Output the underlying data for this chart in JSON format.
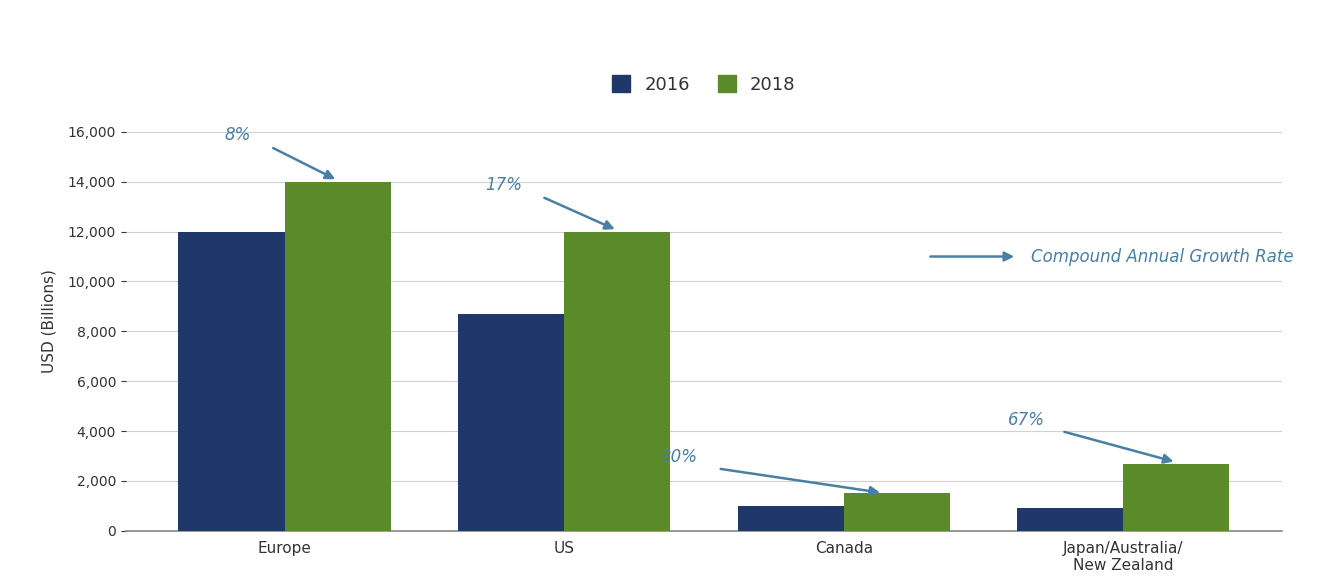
{
  "categories": [
    "Europe",
    "US",
    "Canada",
    "Japan/Australia/\nNew Zealand"
  ],
  "values_2016": [
    12000,
    8700,
    1000,
    900
  ],
  "values_2018": [
    14000,
    12000,
    1500,
    2700
  ],
  "color_2016": "#1f3869",
  "color_2018": "#5a8a2a",
  "ylabel": "USD (Billions)",
  "ylim": [
    0,
    16800
  ],
  "yticks": [
    0,
    2000,
    4000,
    6000,
    8000,
    10000,
    12000,
    14000,
    16000
  ],
  "legend_labels": [
    "2016",
    "2018"
  ],
  "bar_width": 0.38,
  "annotation_color": "#4a7fa5",
  "cagr_label": "Compound Annual Growth Rate",
  "bg_color": "#ffffff",
  "grid_color": "#d0d0d0",
  "axis_fontsize": 11,
  "tick_fontsize": 10,
  "annot_fontsize": 12
}
